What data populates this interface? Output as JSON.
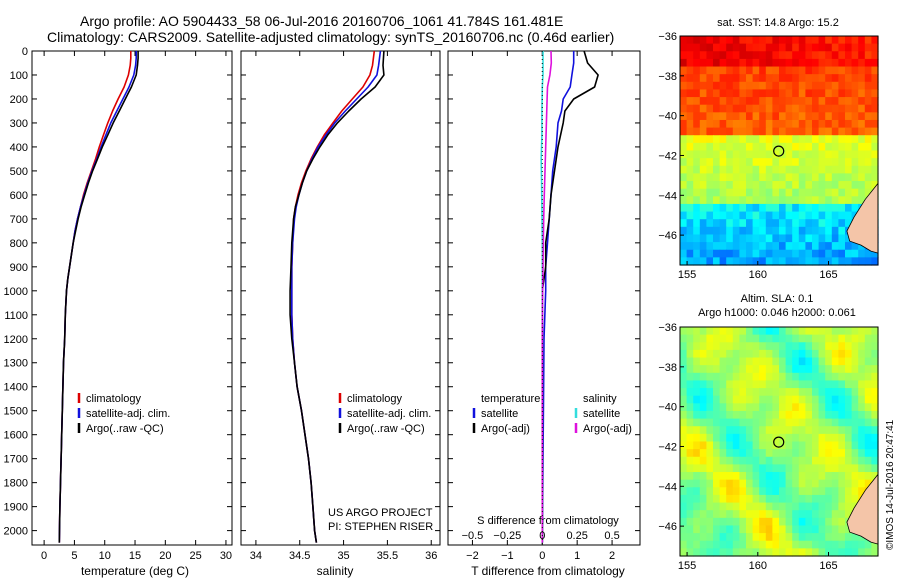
{
  "header": {
    "line1": "Argo profile: AO 5904433_58 06-Jul-2016 20160706_1061 41.784S 161.481E",
    "line2": "Climatology: CARS2009. Satellite-adjusted climatology: synTS_20160706.nc (0.46d earlier)"
  },
  "credits": {
    "project": "US ARGO PROJECT",
    "pi": "PI: STEPHEN RISER",
    "watermark": "©IMOS 14-Jul-2016 20:47:41"
  },
  "colors": {
    "climatology": "#dd0000",
    "satellite": "#1111dd",
    "argo": "#000000",
    "satellite_salinity": "#33dddd",
    "argo_salinity": "#dd11dd",
    "coast": "#f4c5a8",
    "ring": "#000000"
  },
  "chart_data": [
    {
      "type": "line",
      "id": "temperature",
      "xlabel": "temperature (deg C)",
      "ylabel": "",
      "xlim": [
        -2,
        31
      ],
      "ylim": [
        2060,
        0
      ],
      "xticks": [
        0,
        5,
        10,
        15,
        20,
        25,
        30
      ],
      "yticks": [
        0,
        100,
        200,
        300,
        400,
        500,
        600,
        700,
        800,
        900,
        1000,
        1100,
        1200,
        1300,
        1400,
        1500,
        1600,
        1700,
        1800,
        1900,
        2000
      ],
      "legend": [
        "climatology",
        "satellite-adj. clim.",
        "Argo(..raw -QC)"
      ],
      "legend_placement": "lower-center",
      "series": [
        {
          "name": "climatology",
          "color": "#dd0000",
          "x": [
            14.3,
            14.3,
            14.2,
            13.9,
            13.2,
            12.2,
            11.3,
            10.5,
            9.8,
            9.1,
            8.5,
            7.8,
            7.1,
            6.5,
            6.0,
            5.5,
            5.1,
            4.8,
            4.5,
            4.2,
            3.9,
            3.7,
            3.5,
            3.4,
            3.2,
            3.1,
            3.0,
            2.9,
            2.8,
            2.7,
            2.6,
            2.5
          ],
          "y": [
            0,
            30,
            60,
            100,
            150,
            200,
            250,
            300,
            350,
            400,
            450,
            500,
            550,
            600,
            650,
            700,
            750,
            800,
            850,
            900,
            950,
            1000,
            1100,
            1200,
            1300,
            1400,
            1500,
            1600,
            1700,
            1800,
            1900,
            2050
          ]
        },
        {
          "name": "satellite-adj. clim.",
          "color": "#1111dd",
          "x": [
            15.2,
            15.2,
            15.1,
            14.8,
            14.0,
            13.0,
            12.0,
            11.0,
            10.2,
            9.4,
            8.7,
            7.9,
            7.2,
            6.6,
            6.0,
            5.5,
            5.1,
            4.8,
            4.5,
            4.2,
            3.9,
            3.7,
            3.5,
            3.4,
            3.2,
            3.1,
            3.0,
            2.9,
            2.8,
            2.7,
            2.6,
            2.5
          ],
          "y": [
            0,
            30,
            60,
            100,
            150,
            200,
            250,
            300,
            350,
            400,
            450,
            500,
            550,
            600,
            650,
            700,
            750,
            800,
            850,
            900,
            950,
            1000,
            1100,
            1200,
            1300,
            1400,
            1500,
            1600,
            1700,
            1800,
            1900,
            2050
          ]
        },
        {
          "name": "Argo(..raw -QC)",
          "color": "#000000",
          "x": [
            15.5,
            15.5,
            15.4,
            15.2,
            14.4,
            13.4,
            12.4,
            11.4,
            10.5,
            9.6,
            8.8,
            8.0,
            7.3,
            6.7,
            6.1,
            5.6,
            5.2,
            4.8,
            4.5,
            4.2,
            3.9,
            3.7,
            3.5,
            3.4,
            3.2,
            3.1,
            3.0,
            2.9,
            2.8,
            2.7,
            2.6,
            2.5
          ],
          "y": [
            0,
            30,
            60,
            100,
            150,
            200,
            250,
            300,
            350,
            400,
            450,
            500,
            550,
            600,
            650,
            700,
            750,
            800,
            850,
            900,
            950,
            1000,
            1100,
            1200,
            1300,
            1400,
            1500,
            1600,
            1700,
            1800,
            1900,
            2050
          ]
        }
      ]
    },
    {
      "type": "line",
      "id": "salinity",
      "xlabel": "salinity",
      "ylabel": "",
      "xlim": [
        33.83,
        36.1
      ],
      "ylim": [
        2060,
        0
      ],
      "xticks": [
        34,
        34.5,
        35,
        35.5,
        36
      ],
      "legend": [
        "climatology",
        "satellite-adj. clim.",
        "Argo(..raw -QC)"
      ],
      "legend_placement": "lower-right",
      "series": [
        {
          "name": "climatology",
          "color": "#dd0000",
          "x": [
            35.35,
            35.33,
            35.3,
            35.22,
            35.1,
            34.98,
            34.88,
            34.78,
            34.7,
            34.63,
            34.57,
            34.52,
            34.48,
            34.45,
            34.43,
            34.42,
            34.41,
            34.41,
            34.41,
            34.42,
            34.44,
            34.47,
            34.52,
            34.56,
            34.6,
            34.63,
            34.65,
            34.67,
            34.69
          ],
          "y": [
            0,
            60,
            100,
            150,
            200,
            250,
            300,
            350,
            400,
            450,
            500,
            550,
            600,
            650,
            700,
            800,
            900,
            1000,
            1100,
            1200,
            1300,
            1400,
            1500,
            1600,
            1700,
            1800,
            1900,
            2000,
            2050
          ]
        },
        {
          "name": "satellite-adj. clim.",
          "color": "#1111dd",
          "x": [
            35.42,
            35.4,
            35.38,
            35.28,
            35.15,
            35.02,
            34.9,
            34.8,
            34.71,
            34.64,
            34.58,
            34.53,
            34.49,
            34.46,
            34.44,
            34.42,
            34.41,
            34.41,
            34.41,
            34.42,
            34.44,
            34.47,
            34.52,
            34.56,
            34.6,
            34.63,
            34.65,
            34.67,
            34.69
          ],
          "y": [
            0,
            60,
            100,
            150,
            200,
            250,
            300,
            350,
            400,
            450,
            500,
            550,
            600,
            650,
            700,
            800,
            900,
            1000,
            1100,
            1200,
            1300,
            1400,
            1500,
            1600,
            1700,
            1800,
            1900,
            2000,
            2050
          ]
        },
        {
          "name": "Argo(..raw -QC)",
          "color": "#000000",
          "x": [
            35.46,
            35.45,
            35.46,
            35.36,
            35.2,
            35.06,
            34.93,
            34.82,
            34.73,
            34.65,
            34.58,
            34.53,
            34.49,
            34.45,
            34.43,
            34.41,
            34.4,
            34.39,
            34.39,
            34.41,
            34.44,
            34.47,
            34.52,
            34.56,
            34.6,
            34.63,
            34.65,
            34.67,
            34.69
          ],
          "y": [
            0,
            60,
            100,
            150,
            200,
            250,
            300,
            350,
            400,
            450,
            500,
            550,
            600,
            650,
            700,
            800,
            900,
            1000,
            1100,
            1200,
            1300,
            1400,
            1500,
            1600,
            1700,
            1800,
            1900,
            2000,
            2050
          ]
        }
      ]
    },
    {
      "type": "line",
      "id": "differences",
      "xlabel": "T difference from climatology",
      "xlabel_top": "S difference from climatology",
      "xlim": [
        -2.7,
        2.8
      ],
      "ylim": [
        2060,
        0
      ],
      "xticks": [
        -2,
        -1,
        0,
        1,
        2
      ],
      "xticks_s": [
        -0.5,
        -0.25,
        0,
        0.25,
        0.5
      ],
      "legend_headers": [
        "temperature",
        "salinity"
      ],
      "legend": [
        "satellite",
        "Argo(-adj)",
        "satellite",
        "Argo(-adj)"
      ],
      "legend_placement": "lower-center",
      "series": [
        {
          "name": "satellite",
          "group": "temperature",
          "color": "#1111dd",
          "x": [
            0.9,
            0.9,
            0.85,
            0.8,
            0.6,
            0.55,
            0.45,
            0.4,
            0.3,
            0.25,
            0.2,
            0.15,
            0.1,
            0.1,
            0.05,
            0.0
          ],
          "y": [
            0,
            50,
            100,
            150,
            200,
            250,
            300,
            400,
            500,
            600,
            700,
            800,
            900,
            1000,
            1200,
            2050
          ]
        },
        {
          "name": "Argo(-adj)",
          "group": "temperature",
          "color": "#000000",
          "x": [
            1.2,
            1.3,
            1.6,
            1.5,
            0.9,
            0.65,
            0.6,
            0.45,
            0.35,
            0.25,
            0.2,
            0.1,
            0.1,
            0.0,
            0.0,
            0.0
          ],
          "y": [
            0,
            50,
            100,
            150,
            200,
            250,
            300,
            400,
            500,
            600,
            700,
            800,
            900,
            1000,
            1200,
            2050
          ]
        },
        {
          "name": "satellite",
          "group": "salinity",
          "color": "#33dddd",
          "x": [
            0.02,
            0.02,
            0.02,
            0.0,
            -0.01,
            -0.01,
            -0.03,
            -0.02,
            -0.01,
            0.0,
            0.0,
            0.0,
            0.0,
            0.0
          ],
          "y": [
            0,
            50,
            100,
            150,
            250,
            350,
            450,
            550,
            650,
            800,
            1000,
            1200,
            1500,
            2050
          ]
        },
        {
          "name": "Argo(-adj)",
          "group": "salinity",
          "color": "#dd11dd",
          "x": [
            0.25,
            0.26,
            0.22,
            0.15,
            0.14,
            0.12,
            0.1,
            0.08,
            0.06,
            0.04,
            0.03,
            0.02,
            0.01,
            0.0,
            0.0
          ],
          "y": [
            0,
            50,
            100,
            150,
            200,
            300,
            400,
            500,
            600,
            700,
            800,
            900,
            1000,
            1200,
            2050
          ]
        }
      ]
    },
    {
      "type": "heatmap",
      "id": "sst_map",
      "title": "sat. SST: 14.8 Argo: 15.2",
      "xlim": [
        154.5,
        168.5
      ],
      "ylim": [
        -47.5,
        -36
      ],
      "xticks": [
        155,
        160,
        165
      ],
      "yticks": [
        -36,
        -38,
        -40,
        -42,
        -44,
        -46
      ],
      "colormap": "jet",
      "float_position": [
        161.48,
        -41.78
      ],
      "value_ranges": {
        "north_band": [
          17,
          19
        ],
        "mid_band": [
          15,
          16.5
        ],
        "green_band": [
          13,
          14.5
        ],
        "south_band": [
          10,
          12.5
        ]
      }
    },
    {
      "type": "heatmap",
      "id": "sla_map",
      "title": "Altim. SLA: 0.1",
      "subtitle": "Argo h1000: 0.046 h2000: 0.061",
      "xlim": [
        154.5,
        168.5
      ],
      "ylim": [
        -47.5,
        -36
      ],
      "xticks": [
        155,
        160,
        165
      ],
      "yticks": [
        -36,
        -38,
        -40,
        -42,
        -44,
        -46
      ],
      "colormap": "jet",
      "float_position": [
        161.48,
        -41.78
      ]
    }
  ]
}
